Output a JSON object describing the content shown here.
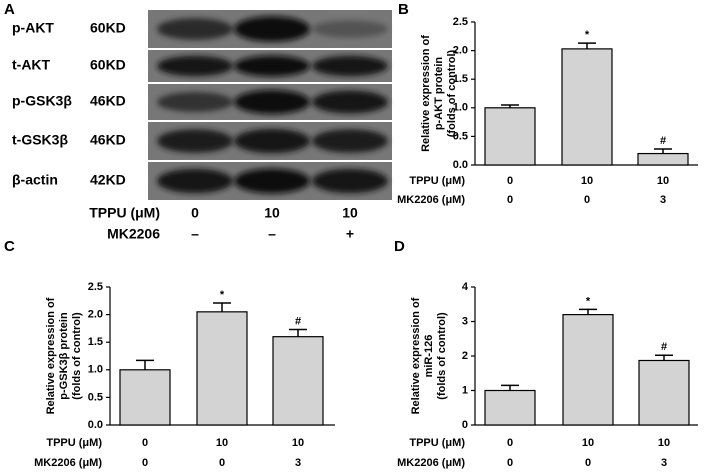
{
  "panel_labels": [
    "A",
    "B",
    "C",
    "D"
  ],
  "blot": {
    "rows": [
      {
        "name": "p-AKT",
        "size": "60KD"
      },
      {
        "name": "t-AKT",
        "size": "60KD"
      },
      {
        "name": "p-GSK3β",
        "size": "46KD"
      },
      {
        "name": "t-GSK3β",
        "size": "46KD"
      },
      {
        "name": "β-actin",
        "size": "42KD"
      }
    ],
    "conditions": [
      {
        "label": "TPPU (μM)",
        "values": [
          "0",
          "10",
          "10"
        ]
      },
      {
        "label": "MK2206",
        "values": [
          "–",
          "–",
          "+"
        ]
      }
    ]
  },
  "chart_data": [
    {
      "type": "bar",
      "ylabel": [
        "Relative expression of",
        "p-AKT protein",
        "(folds of control)"
      ],
      "conditions": [
        {
          "label": "TPPU (μM)",
          "values": [
            "0",
            "10",
            "10"
          ]
        },
        {
          "label": "MK2206 (μM)",
          "values": [
            "0",
            "0",
            "3"
          ]
        }
      ],
      "values": [
        1.0,
        2.03,
        0.2
      ],
      "errors": [
        0.05,
        0.1,
        0.08
      ],
      "annotations": [
        null,
        "*",
        "#"
      ],
      "color": "#d3d3d3",
      "ylim": [
        0,
        2.5
      ],
      "yticks": [
        {
          "value": 0,
          "label": "0.0"
        },
        0.5,
        {
          "value": 1,
          "label": "1.0"
        },
        1.5,
        {
          "value": 2,
          "label": "2.0"
        },
        2.5
      ]
    },
    {
      "type": "bar",
      "ylabel": [
        "Relative expression of",
        "p-GSK3β protein",
        "(folds of control)"
      ],
      "conditions": [
        {
          "label": "TPPU (μM)",
          "values": [
            "0",
            "10",
            "10"
          ]
        },
        {
          "label": "MK2206 (μM)",
          "values": [
            "0",
            "0",
            "3"
          ]
        }
      ],
      "values": [
        1.0,
        2.05,
        1.6
      ],
      "errors": [
        0.17,
        0.16,
        0.13
      ],
      "annotations": [
        null,
        "*",
        "#"
      ],
      "color": "#d3d3d3",
      "ylim": [
        0,
        2.5
      ],
      "yticks": [
        {
          "value": 0,
          "label": "0.0"
        },
        0.5,
        {
          "value": 1,
          "label": "1.0"
        },
        1.5,
        {
          "value": 2,
          "label": "2.0"
        },
        2.5
      ]
    },
    {
      "type": "bar",
      "ylabel": [
        "Relative expression of",
        "miR-126",
        "(folds of control)"
      ],
      "conditions": [
        {
          "label": "TPPU (μM)",
          "values": [
            "0",
            "10",
            "10"
          ]
        },
        {
          "label": "MK2206 (μM)",
          "values": [
            "0",
            "0",
            "3"
          ]
        }
      ],
      "values": [
        1.0,
        3.2,
        1.87
      ],
      "errors": [
        0.15,
        0.15,
        0.15
      ],
      "annotations": [
        null,
        "*",
        "#"
      ],
      "color": "#d3d3d3",
      "ylim": [
        0,
        4
      ],
      "yticks": [
        0,
        1,
        2,
        3,
        4
      ]
    }
  ]
}
